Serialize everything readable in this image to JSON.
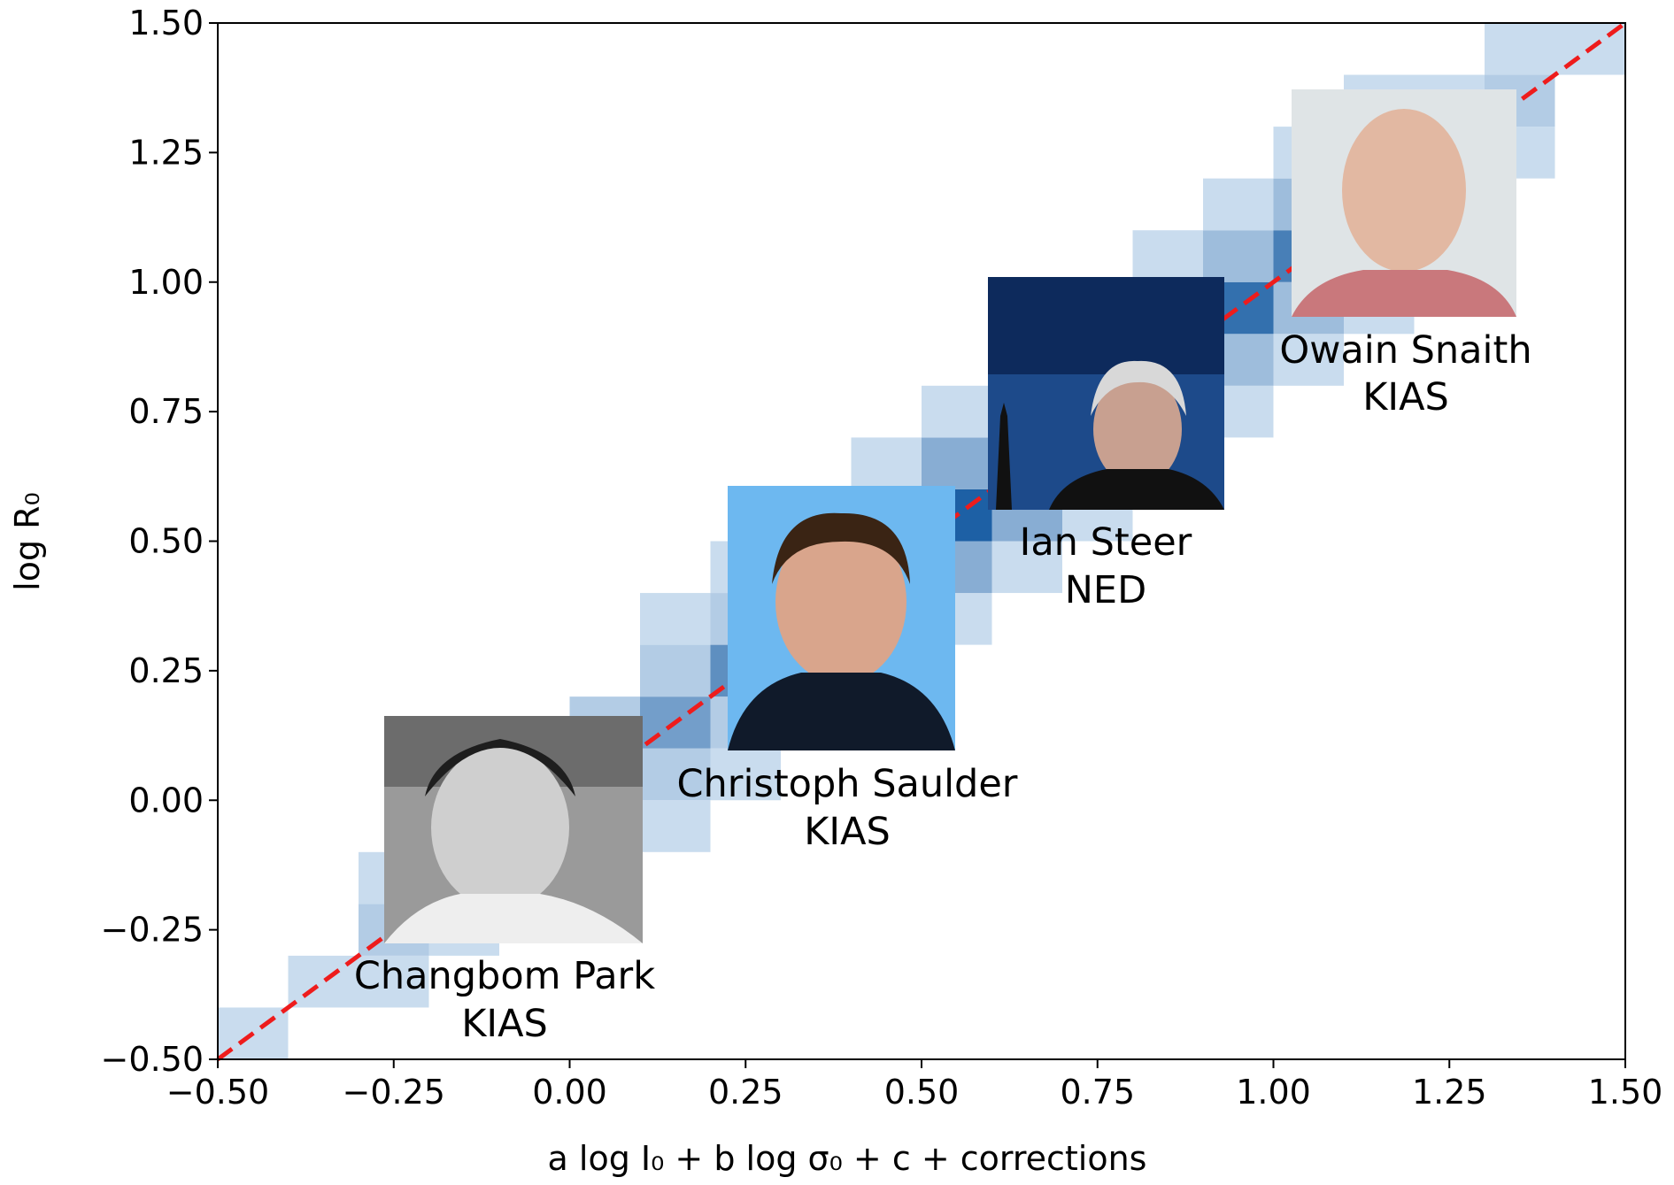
{
  "chart_data": {
    "type": "histogram2d",
    "xlabel": "a log I₀ + b log σ₀ + c + corrections",
    "ylabel": "log R₀",
    "xlim": [
      -0.5,
      1.5
    ],
    "ylim": [
      -0.5,
      1.5
    ],
    "xticks": [
      {
        "value": -0.5,
        "label": "−0.50"
      },
      {
        "value": -0.25,
        "label": "−0.25"
      },
      {
        "value": 0,
        "label": "0.00"
      },
      {
        "value": 0.25,
        "label": "0.25"
      },
      {
        "value": 0.5,
        "label": "0.50"
      },
      {
        "value": 0.75,
        "label": "0.75"
      },
      {
        "value": 1,
        "label": "1.00"
      },
      {
        "value": 1.25,
        "label": "1.25"
      },
      {
        "value": 1.5,
        "label": "1.50"
      }
    ],
    "yticks": [
      {
        "value": -0.5,
        "label": "−0.50"
      },
      {
        "value": -0.25,
        "label": "−0.25"
      },
      {
        "value": 0,
        "label": "0.00"
      },
      {
        "value": 0.25,
        "label": "0.25"
      },
      {
        "value": 0.5,
        "label": "0.50"
      },
      {
        "value": 0.75,
        "label": "0.75"
      },
      {
        "value": 1,
        "label": "1.00"
      },
      {
        "value": 1.25,
        "label": "1.25"
      },
      {
        "value": 1.5,
        "label": "1.50"
      }
    ],
    "color": "#08519c",
    "xbins": [
      -0.5,
      -0.4,
      -0.3,
      -0.2,
      -0.1,
      0,
      0.1,
      0.2,
      0.3,
      0.4,
      0.5,
      0.6,
      0.7,
      0.8,
      0.9,
      1,
      1.1,
      1.2,
      1.3,
      1.4,
      1.5
    ],
    "ybins": [
      -0.5,
      -0.4,
      -0.3,
      -0.2,
      -0.1,
      0,
      0.1,
      0.2,
      0.3,
      0.4,
      0.5,
      0.6,
      0.7,
      0.8,
      0.9,
      1,
      1.1,
      1.2,
      1.3,
      1.4,
      1.5
    ],
    "counts": [
      [
        1,
        0,
        0,
        0,
        0,
        0,
        0,
        0,
        0,
        0,
        0,
        0,
        0,
        0,
        0,
        0,
        0,
        0,
        0,
        0
      ],
      [
        0,
        1,
        1,
        0,
        0,
        0,
        0,
        0,
        0,
        0,
        0,
        0,
        0,
        0,
        0,
        0,
        0,
        0,
        0,
        0
      ],
      [
        0,
        0,
        2,
        1,
        0,
        0,
        0,
        0,
        0,
        0,
        0,
        0,
        0,
        0,
        0,
        0,
        0,
        0,
        0,
        0
      ],
      [
        0,
        0,
        1,
        2,
        1,
        0,
        0,
        0,
        0,
        0,
        0,
        0,
        0,
        0,
        0,
        0,
        0,
        0,
        0,
        0
      ],
      [
        0,
        0,
        0,
        1,
        3,
        2,
        1,
        0,
        0,
        0,
        0,
        0,
        0,
        0,
        0,
        0,
        0,
        0,
        0,
        0
      ],
      [
        0,
        0,
        0,
        0,
        1,
        4,
        2,
        1,
        0,
        0,
        0,
        0,
        0,
        0,
        0,
        0,
        0,
        0,
        0,
        0
      ],
      [
        0,
        0,
        0,
        0,
        0,
        2,
        5,
        2,
        1,
        0,
        0,
        0,
        0,
        0,
        0,
        0,
        0,
        0,
        0,
        0
      ],
      [
        0,
        0,
        0,
        0,
        0,
        0,
        2,
        6,
        3,
        1,
        0,
        0,
        0,
        0,
        0,
        0,
        0,
        0,
        0,
        0
      ],
      [
        0,
        0,
        0,
        0,
        0,
        0,
        1,
        2,
        7,
        3,
        1,
        0,
        0,
        0,
        0,
        0,
        0,
        0,
        0,
        0
      ],
      [
        0,
        0,
        0,
        0,
        0,
        0,
        0,
        1,
        3,
        8,
        4,
        1,
        0,
        0,
        0,
        0,
        0,
        0,
        0,
        0
      ],
      [
        0,
        0,
        0,
        0,
        0,
        0,
        0,
        0,
        1,
        3,
        9,
        4,
        1,
        0,
        0,
        0,
        0,
        0,
        0,
        0
      ],
      [
        0,
        0,
        0,
        0,
        0,
        0,
        0,
        0,
        0,
        1,
        4,
        10,
        4,
        1,
        0,
        0,
        0,
        0,
        0,
        0
      ],
      [
        0,
        0,
        0,
        0,
        0,
        0,
        0,
        0,
        0,
        0,
        1,
        4,
        10,
        4,
        1,
        0,
        0,
        0,
        0,
        0
      ],
      [
        0,
        0,
        0,
        0,
        0,
        0,
        0,
        0,
        0,
        0,
        0,
        1,
        4,
        9,
        3,
        1,
        0,
        0,
        0,
        0
      ],
      [
        0,
        0,
        0,
        0,
        0,
        0,
        0,
        0,
        0,
        0,
        0,
        0,
        1,
        4,
        8,
        3,
        1,
        0,
        0,
        0
      ],
      [
        0,
        0,
        0,
        0,
        0,
        0,
        0,
        0,
        0,
        0,
        0,
        0,
        0,
        1,
        3,
        7,
        2,
        0,
        0,
        0
      ],
      [
        0,
        0,
        0,
        0,
        0,
        0,
        0,
        0,
        0,
        0,
        0,
        0,
        0,
        0,
        1,
        3,
        5,
        1,
        0,
        0
      ],
      [
        0,
        0,
        0,
        0,
        0,
        0,
        0,
        0,
        0,
        0,
        0,
        0,
        0,
        0,
        0,
        1,
        2,
        3,
        1,
        0
      ],
      [
        0,
        0,
        0,
        0,
        0,
        0,
        0,
        0,
        0,
        0,
        0,
        0,
        0,
        0,
        0,
        0,
        1,
        1,
        2,
        0
      ],
      [
        0,
        0,
        0,
        0,
        0,
        0,
        0,
        0,
        0,
        0,
        0,
        0,
        0,
        0,
        0,
        0,
        0,
        0,
        1,
        1
      ]
    ],
    "fit_line": {
      "x": [
        -0.5,
        1.5
      ],
      "y": [
        -0.5,
        1.5
      ],
      "color": "#ee1c1c"
    },
    "annotations": [
      {
        "name": "Changbom Park",
        "affiliation": "KIAS"
      },
      {
        "name": "Christoph Saulder",
        "affiliation": "KIAS"
      },
      {
        "name": "Ian Steer",
        "affiliation": "NED"
      },
      {
        "name": "Owain Snaith",
        "affiliation": "KIAS"
      }
    ]
  }
}
